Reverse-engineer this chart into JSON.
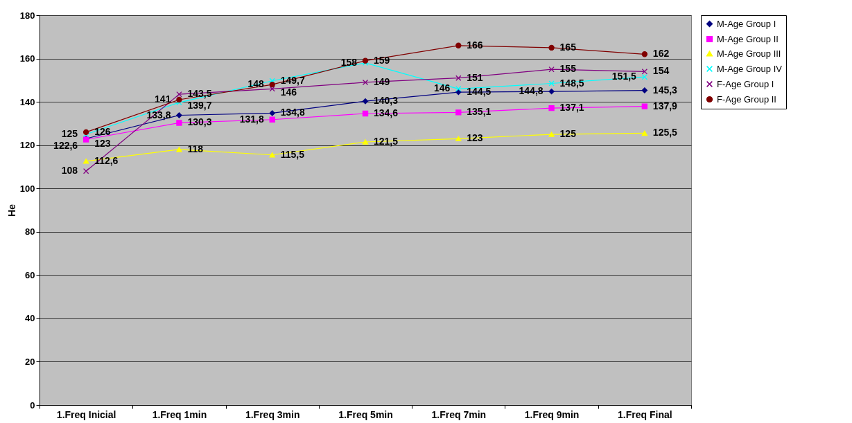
{
  "chart_data": {
    "type": "line",
    "ylabel": "He",
    "categories": [
      "1.Freq Inicial",
      "1.Freq 1min",
      "1.Freq 3min",
      "1.Freq 5min",
      "1.Freq 7min",
      "1.Freq 9min",
      "1.Freq Final"
    ],
    "ylim": [
      0,
      180
    ],
    "yticks": [
      0,
      20,
      40,
      60,
      80,
      100,
      120,
      140,
      160,
      180
    ],
    "grid": "y",
    "legend": "right",
    "series": [
      {
        "name": "M-Age Group I",
        "color": "#000080",
        "marker": "diamond",
        "values": [
          123,
          133.8,
          134.8,
          140.3,
          144.5,
          144.8,
          145.3
        ],
        "value_labels": [
          "123",
          "133,8",
          "134,8",
          "140,3",
          "144,5",
          "144,8",
          "145,3"
        ]
      },
      {
        "name": "M-Age Group II",
        "color": "#ff00ff",
        "marker": "square",
        "values": [
          122.6,
          130.3,
          131.8,
          134.6,
          135.1,
          137.1,
          137.9
        ],
        "value_labels": [
          "122,6",
          "130,3",
          "131,8",
          "134,6",
          "135,1",
          "137,1",
          "137,9"
        ]
      },
      {
        "name": "M-Age Group III",
        "color": "#ffff00",
        "marker": "triangle",
        "values": [
          112.6,
          118,
          115.5,
          121.5,
          123,
          125,
          125.5
        ],
        "value_labels": [
          "112,6",
          "118",
          "115,5",
          "121,5",
          "123",
          "125",
          "125,5"
        ]
      },
      {
        "name": "M-Age Group IV",
        "color": "#00ffff",
        "marker": "cross",
        "values": [
          125,
          139.7,
          149.7,
          158,
          146,
          148.5,
          151.5
        ],
        "value_labels": [
          "125",
          "139,7",
          "149,7",
          "158",
          "146",
          "148,5",
          "151,5"
        ]
      },
      {
        "name": "F-Age Group I",
        "color": "#800080",
        "marker": "cross",
        "values": [
          108,
          143.5,
          146,
          149,
          151,
          155,
          154
        ],
        "value_labels": [
          "108",
          "143,5",
          "146",
          "149",
          "151",
          "155",
          "154"
        ]
      },
      {
        "name": "F-Age Group II",
        "color": "#800000",
        "marker": "circle",
        "values": [
          126,
          141,
          148,
          159,
          166,
          165,
          162
        ],
        "value_labels": [
          "126",
          "141",
          "148",
          "159",
          "166",
          "165",
          "162"
        ]
      }
    ]
  }
}
